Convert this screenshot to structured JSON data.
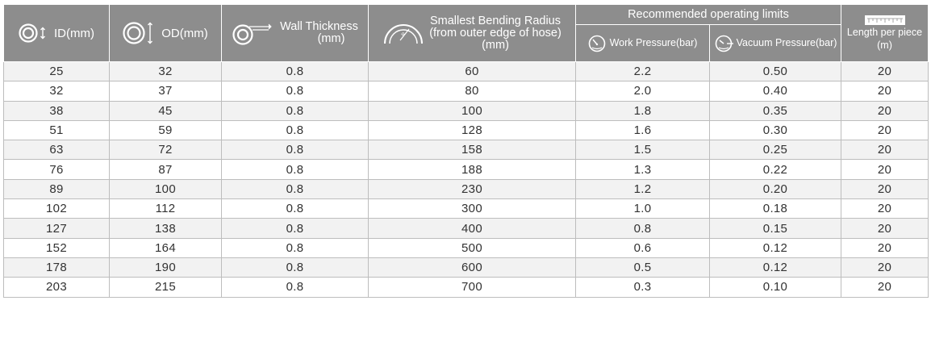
{
  "header": {
    "id_label": "ID(mm)",
    "od_label": "OD(mm)",
    "wall_line1": "Wall Thickness",
    "wall_line2": "(mm)",
    "bend_line1": "Smallest Bending Radius",
    "bend_line2": "(from outer edge of hose)",
    "bend_line3": "(mm)",
    "limits_group": "Recommended operating limits",
    "work_pressure": "Work Pressure(bar)",
    "vacuum_pressure": "Vacuum Pressure(bar)",
    "length_line1": "Length per piece",
    "length_line2": "(m)"
  },
  "icons": {
    "id": "id-diameter-icon",
    "od": "od-diameter-icon",
    "wall": "wall-thickness-icon",
    "bend": "bending-radius-icon",
    "work": "pressure-gauge-icon",
    "vacuum": "vacuum-gauge-icon",
    "length": "ruler-icon"
  },
  "colors": {
    "header_bg": "#8d8d8d",
    "header_text": "#ffffff",
    "row_alt": "#f2f2f2",
    "grid": "#bdbdbd",
    "text": "#333333"
  },
  "rows": [
    [
      "25",
      "32",
      "0.8",
      "60",
      "2.2",
      "0.50",
      "20"
    ],
    [
      "32",
      "37",
      "0.8",
      "80",
      "2.0",
      "0.40",
      "20"
    ],
    [
      "38",
      "45",
      "0.8",
      "100",
      "1.8",
      "0.35",
      "20"
    ],
    [
      "51",
      "59",
      "0.8",
      "128",
      "1.6",
      "0.30",
      "20"
    ],
    [
      "63",
      "72",
      "0.8",
      "158",
      "1.5",
      "0.25",
      "20"
    ],
    [
      "76",
      "87",
      "0.8",
      "188",
      "1.3",
      "0.22",
      "20"
    ],
    [
      "89",
      "100",
      "0.8",
      "230",
      "1.2",
      "0.20",
      "20"
    ],
    [
      "102",
      "112",
      "0.8",
      "300",
      "1.0",
      "0.18",
      "20"
    ],
    [
      "127",
      "138",
      "0.8",
      "400",
      "0.8",
      "0.15",
      "20"
    ],
    [
      "152",
      "164",
      "0.8",
      "500",
      "0.6",
      "0.12",
      "20"
    ],
    [
      "178",
      "190",
      "0.8",
      "600",
      "0.5",
      "0.12",
      "20"
    ],
    [
      "203",
      "215",
      "0.8",
      "700",
      "0.3",
      "0.10",
      "20"
    ]
  ]
}
